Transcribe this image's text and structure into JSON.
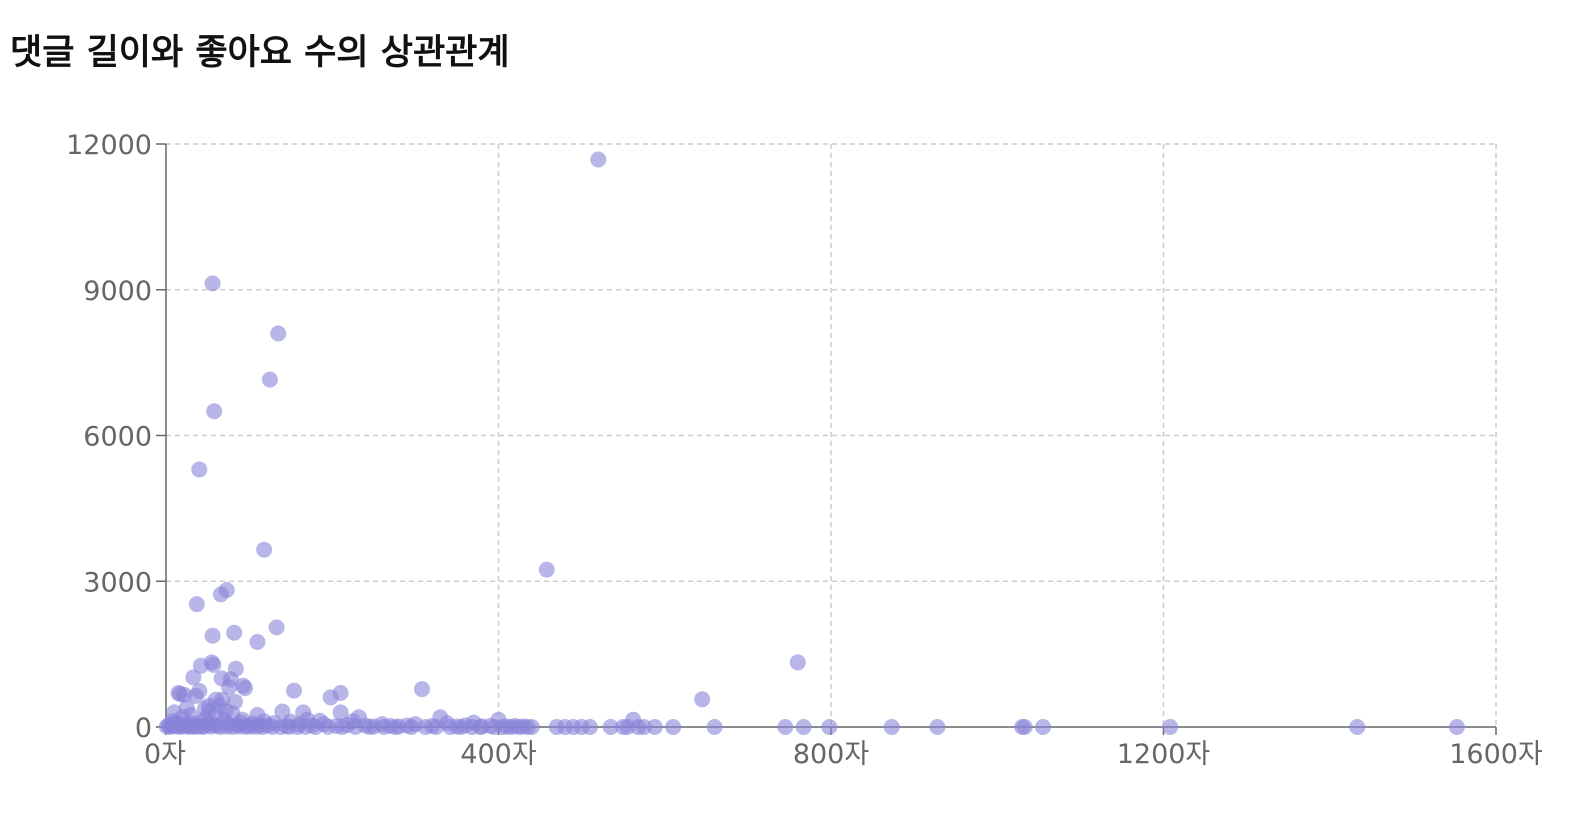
{
  "chart_data": {
    "type": "scatter",
    "title": "댓글 길이와 좋아요 수의 상관관계",
    "xlabel": "",
    "ylabel": "",
    "x_unit_suffix": "자",
    "xlim": [
      0,
      1600
    ],
    "ylim": [
      0,
      12000
    ],
    "x_ticks": [
      0,
      400,
      800,
      1200,
      1600
    ],
    "y_ticks": [
      0,
      3000,
      6000,
      9000,
      12000
    ],
    "grid": true,
    "point_color": "#8884d8",
    "point_opacity": 0.6,
    "series": [
      {
        "points": [
          [
            520,
            11680
          ],
          [
            56,
            9130
          ],
          [
            135,
            8100
          ],
          [
            125,
            7150
          ],
          [
            58,
            6500
          ],
          [
            40,
            5300
          ],
          [
            118,
            3650
          ],
          [
            458,
            3240
          ],
          [
            73,
            2820
          ],
          [
            66,
            2730
          ],
          [
            37,
            2530
          ],
          [
            133,
            2050
          ],
          [
            82,
            1940
          ],
          [
            56,
            1880
          ],
          [
            110,
            1750
          ],
          [
            760,
            1330
          ],
          [
            55,
            1330
          ],
          [
            57,
            1280
          ],
          [
            42,
            1260
          ],
          [
            84,
            1200
          ],
          [
            33,
            1020
          ],
          [
            67,
            1000
          ],
          [
            78,
            980
          ],
          [
            93,
            850
          ],
          [
            95,
            800
          ],
          [
            76,
            820
          ],
          [
            308,
            780
          ],
          [
            154,
            750
          ],
          [
            40,
            740
          ],
          [
            15,
            700
          ],
          [
            17,
            680
          ],
          [
            22,
            660
          ],
          [
            210,
            700
          ],
          [
            198,
            610
          ],
          [
            36,
            640
          ],
          [
            645,
            570
          ],
          [
            60,
            560
          ],
          [
            68,
            560
          ],
          [
            83,
            520
          ],
          [
            25,
            400
          ],
          [
            52,
            440
          ],
          [
            64,
            440
          ],
          [
            47,
            380
          ],
          [
            10,
            300
          ],
          [
            140,
            320
          ],
          [
            165,
            300
          ],
          [
            210,
            300
          ],
          [
            110,
            250
          ],
          [
            330,
            200
          ],
          [
            52,
            320
          ],
          [
            72,
            330
          ],
          [
            562,
            150
          ],
          [
            400,
            150
          ],
          [
            232,
            200
          ],
          [
            60,
            260
          ],
          [
            80,
            280
          ],
          [
            30,
            250
          ],
          [
            20,
            200
          ],
          [
            48,
            180
          ],
          [
            92,
            150
          ],
          [
            118,
            120
          ],
          [
            150,
            110
          ],
          [
            170,
            150
          ],
          [
            185,
            130
          ],
          [
            225,
            120
          ],
          [
            260,
            60
          ],
          [
            300,
            60
          ],
          [
            338,
            80
          ],
          [
            370,
            90
          ],
          [
            8,
            120
          ],
          [
            12,
            90
          ],
          [
            18,
            60
          ],
          [
            24,
            40
          ],
          [
            30,
            80
          ],
          [
            36,
            30
          ],
          [
            42,
            100
          ],
          [
            50,
            60
          ],
          [
            58,
            40
          ],
          [
            62,
            20
          ],
          [
            70,
            150
          ],
          [
            75,
            60
          ],
          [
            86,
            40
          ],
          [
            90,
            90
          ],
          [
            98,
            30
          ],
          [
            104,
            70
          ],
          [
            112,
            40
          ],
          [
            122,
            30
          ],
          [
            130,
            80
          ],
          [
            145,
            20
          ],
          [
            160,
            50
          ],
          [
            175,
            30
          ],
          [
            190,
            60
          ],
          [
            205,
            20
          ],
          [
            218,
            40
          ],
          [
            240,
            30
          ],
          [
            250,
            10
          ],
          [
            270,
            20
          ],
          [
            280,
            10
          ],
          [
            290,
            30
          ],
          [
            320,
            20
          ],
          [
            350,
            10
          ],
          [
            360,
            30
          ],
          [
            380,
            10
          ],
          [
            390,
            20
          ],
          [
            410,
            10
          ],
          [
            420,
            20
          ],
          [
            430,
            10
          ],
          [
            440,
            0
          ],
          [
            1,
            10
          ],
          [
            3,
            30
          ],
          [
            5,
            5
          ],
          [
            6,
            50
          ],
          [
            9,
            15
          ],
          [
            14,
            20
          ],
          [
            16,
            5
          ],
          [
            20,
            10
          ],
          [
            26,
            15
          ],
          [
            28,
            5
          ],
          [
            32,
            20
          ],
          [
            34,
            5
          ],
          [
            38,
            10
          ],
          [
            44,
            5
          ],
          [
            46,
            15
          ],
          [
            54,
            10
          ],
          [
            66,
            5
          ],
          [
            74,
            10
          ],
          [
            80,
            5
          ],
          [
            88,
            10
          ],
          [
            96,
            5
          ],
          [
            102,
            10
          ],
          [
            108,
            5
          ],
          [
            116,
            0
          ],
          [
            128,
            5
          ],
          [
            138,
            0
          ],
          [
            148,
            5
          ],
          [
            158,
            0
          ],
          [
            168,
            5
          ],
          [
            180,
            0
          ],
          [
            195,
            5
          ],
          [
            212,
            0
          ],
          [
            228,
            5
          ],
          [
            245,
            0
          ],
          [
            262,
            0
          ],
          [
            276,
            0
          ],
          [
            295,
            0
          ],
          [
            312,
            0
          ],
          [
            325,
            0
          ],
          [
            342,
            0
          ],
          [
            355,
            0
          ],
          [
            368,
            0
          ],
          [
            378,
            0
          ],
          [
            395,
            0
          ],
          [
            405,
            0
          ],
          [
            415,
            0
          ],
          [
            425,
            0
          ],
          [
            435,
            0
          ],
          [
            470,
            0
          ],
          [
            480,
            0
          ],
          [
            490,
            0
          ],
          [
            500,
            0
          ],
          [
            510,
            0
          ],
          [
            535,
            0
          ],
          [
            550,
            0
          ],
          [
            555,
            0
          ],
          [
            568,
            0
          ],
          [
            575,
            0
          ],
          [
            588,
            0
          ],
          [
            610,
            0
          ],
          [
            660,
            0
          ],
          [
            745,
            0
          ],
          [
            767,
            0
          ],
          [
            798,
            0
          ],
          [
            873,
            0
          ],
          [
            928,
            0
          ],
          [
            1030,
            0
          ],
          [
            1033,
            0
          ],
          [
            1055,
            0
          ],
          [
            1208,
            0
          ],
          [
            1433,
            0
          ],
          [
            1553,
            0
          ]
        ]
      }
    ]
  }
}
